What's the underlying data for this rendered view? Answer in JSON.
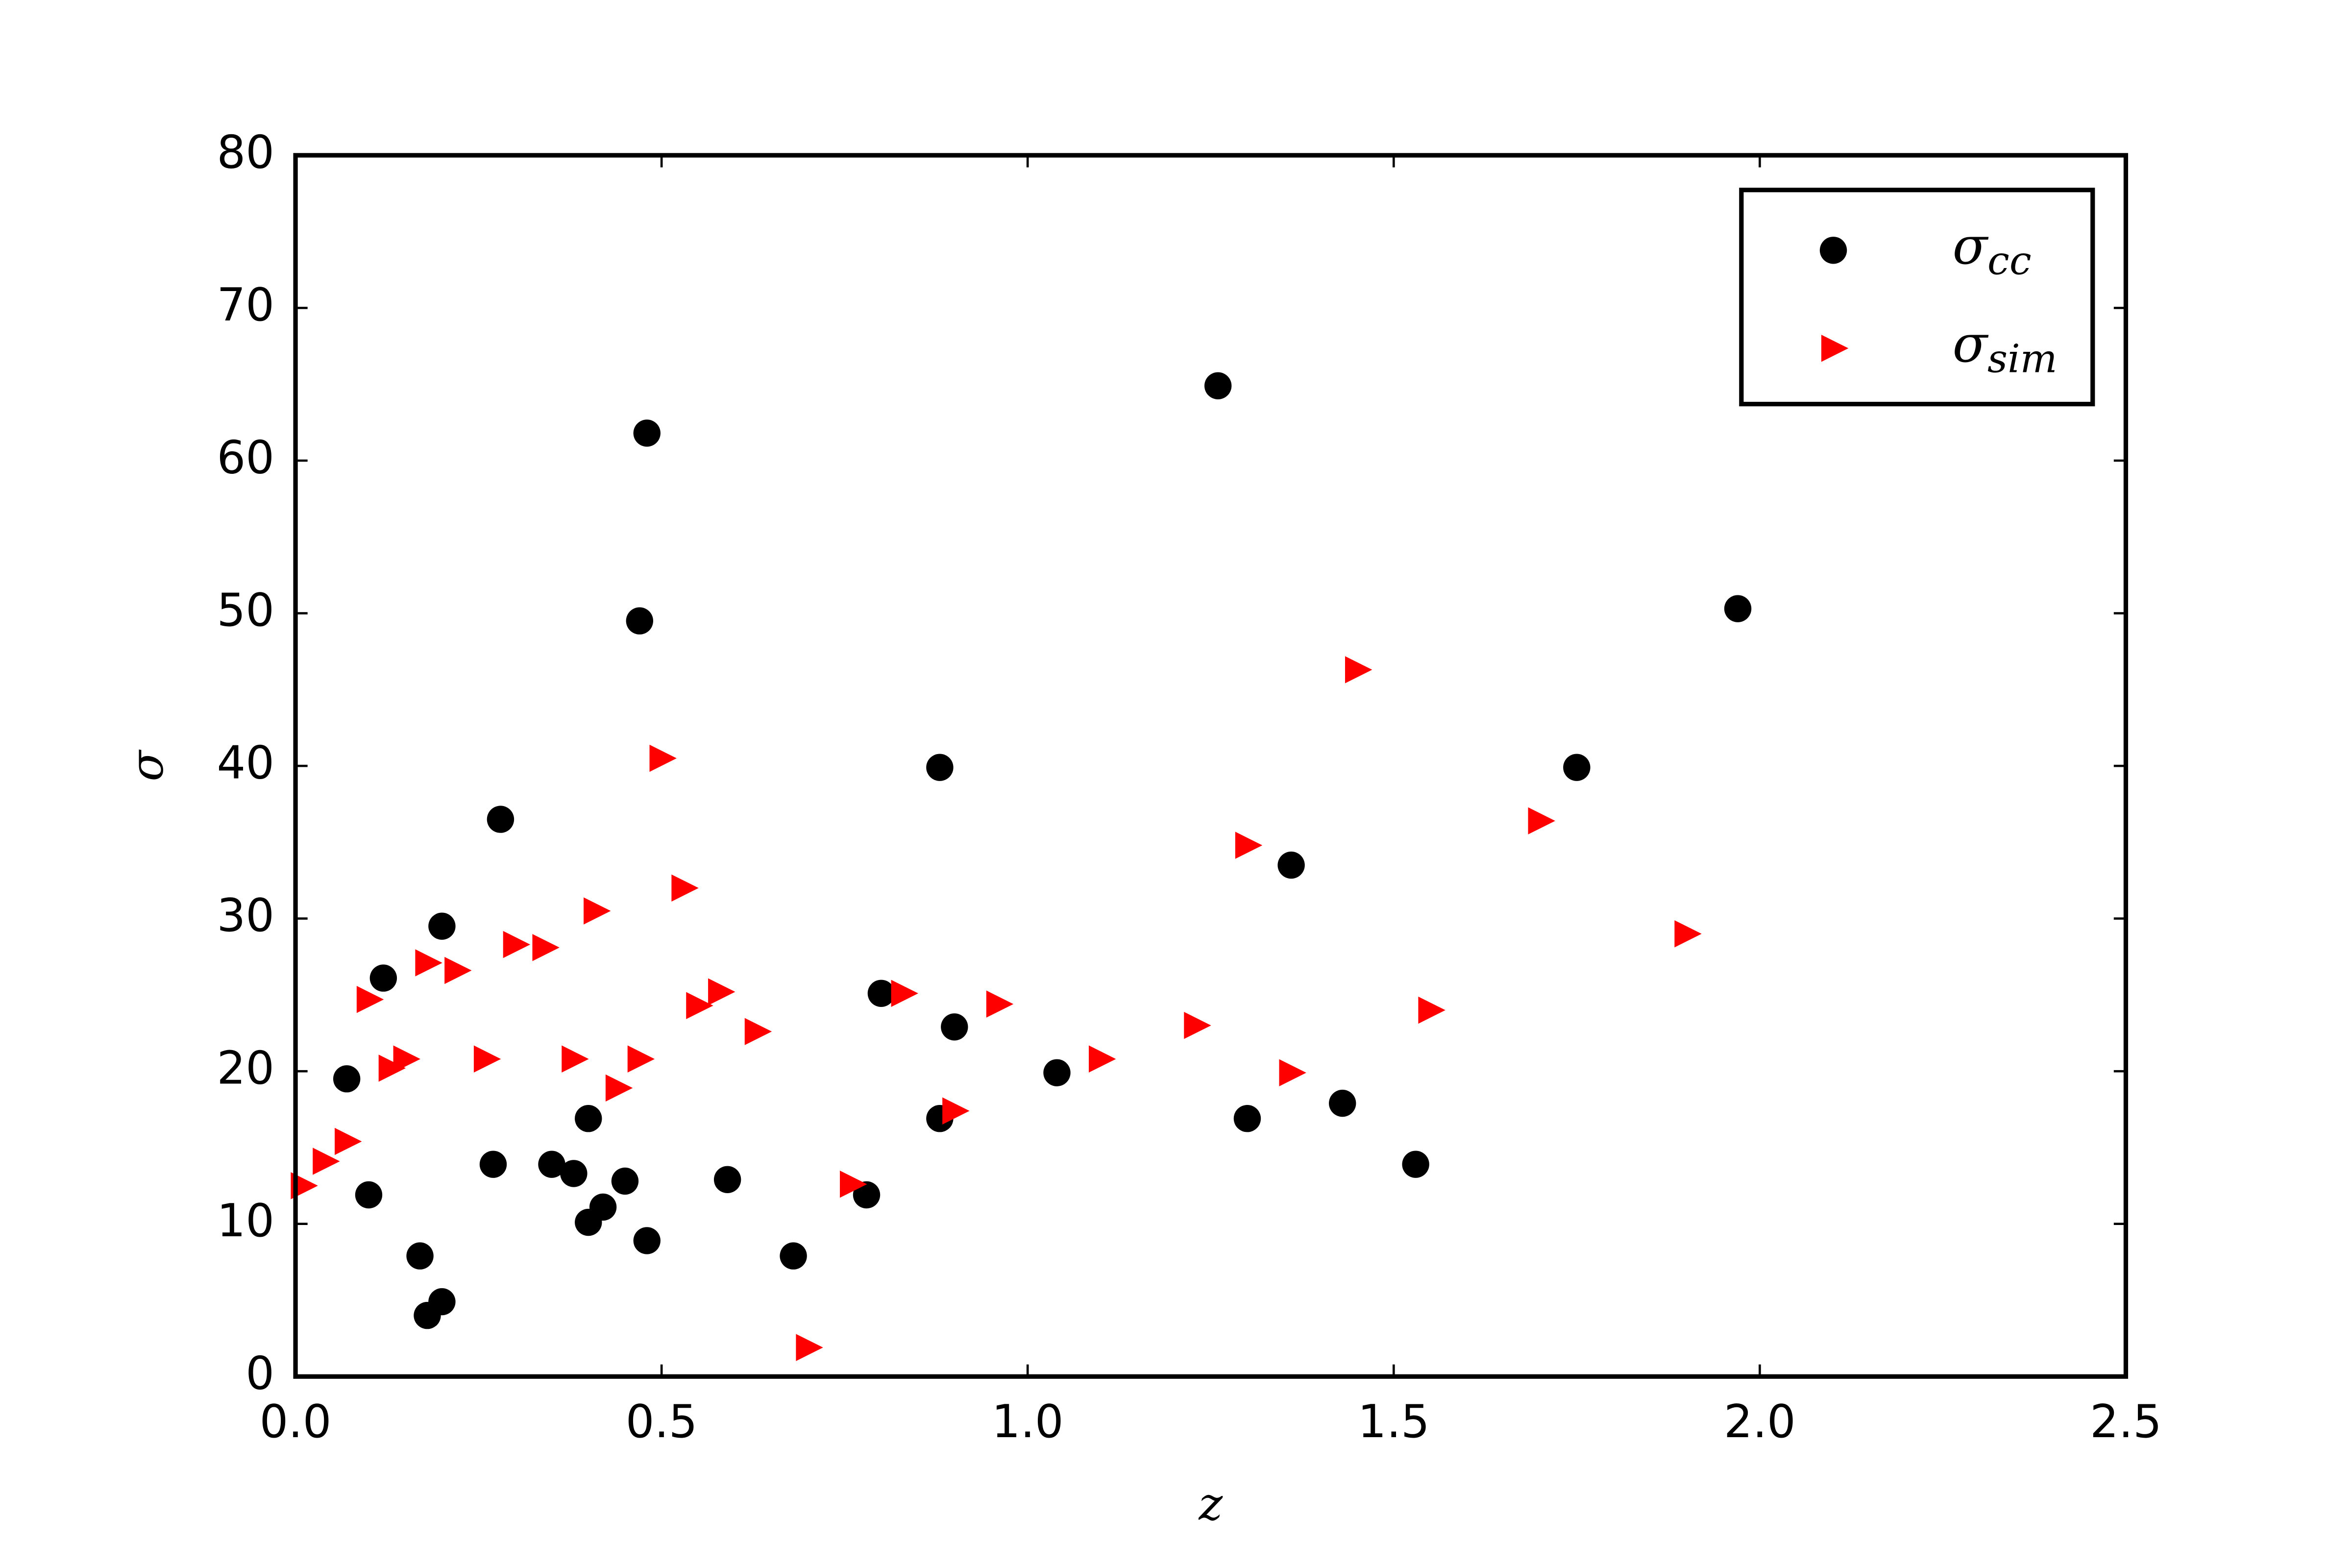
{
  "chart_data": {
    "type": "scatter",
    "x_label": "z",
    "y_label": "σ",
    "xlim": [
      0,
      2.5
    ],
    "ylim": [
      0,
      80
    ],
    "xticks": [
      {
        "value": 0,
        "label": "0.0"
      },
      0.5,
      {
        "value": 1,
        "label": "1.0"
      },
      1.5,
      {
        "value": 2,
        "label": "2.0"
      },
      2.5
    ],
    "yticks": [
      0,
      10,
      20,
      30,
      40,
      50,
      60,
      70,
      80
    ],
    "legend": "upper right",
    "series": [
      {
        "name": "σ",
        "name_sub": "cc",
        "color": "#000000",
        "marker": "circle",
        "x": [
          0.07,
          0.1,
          0.12,
          0.17,
          0.18,
          0.2,
          0.2,
          0.27,
          0.28,
          0.35,
          0.38,
          0.4,
          0.4,
          0.42,
          0.45,
          0.47,
          0.48,
          0.48,
          0.59,
          0.68,
          0.78,
          0.8,
          0.88,
          0.88,
          0.9,
          1.04,
          1.26,
          1.3,
          1.36,
          1.43,
          1.53,
          1.75,
          1.97
        ],
        "values": [
          19.5,
          11.9,
          26.1,
          7.9,
          4.0,
          4.9,
          29.5,
          13.9,
          36.5,
          13.9,
          13.3,
          16.9,
          10.1,
          11.1,
          12.8,
          49.5,
          8.9,
          61.8,
          12.9,
          7.9,
          11.9,
          25.1,
          16.9,
          39.9,
          22.9,
          19.9,
          64.9,
          16.9,
          33.5,
          17.9,
          13.9,
          39.9,
          50.3
        ]
      },
      {
        "name": "σ",
        "name_sub": "sim",
        "color": "#ff0000",
        "marker": "triangle-right",
        "x": [
          0.01,
          0.04,
          0.07,
          0.1,
          0.13,
          0.15,
          0.18,
          0.22,
          0.26,
          0.3,
          0.34,
          0.38,
          0.41,
          0.44,
          0.47,
          0.5,
          0.53,
          0.55,
          0.58,
          0.63,
          0.7,
          0.76,
          0.83,
          0.9,
          0.96,
          1.1,
          1.23,
          1.3,
          1.36,
          1.45,
          1.55,
          1.7,
          1.9
        ],
        "values": [
          12.5,
          14.1,
          15.4,
          24.7,
          20.2,
          20.8,
          27.1,
          26.6,
          20.8,
          28.3,
          28.1,
          20.8,
          30.5,
          18.9,
          20.8,
          40.5,
          32.0,
          24.3,
          25.2,
          22.6,
          1.9,
          12.6,
          25.1,
          17.4,
          24.4,
          20.8,
          23.0,
          34.8,
          19.9,
          46.3,
          24.0,
          36.4,
          29.0
        ]
      }
    ]
  }
}
